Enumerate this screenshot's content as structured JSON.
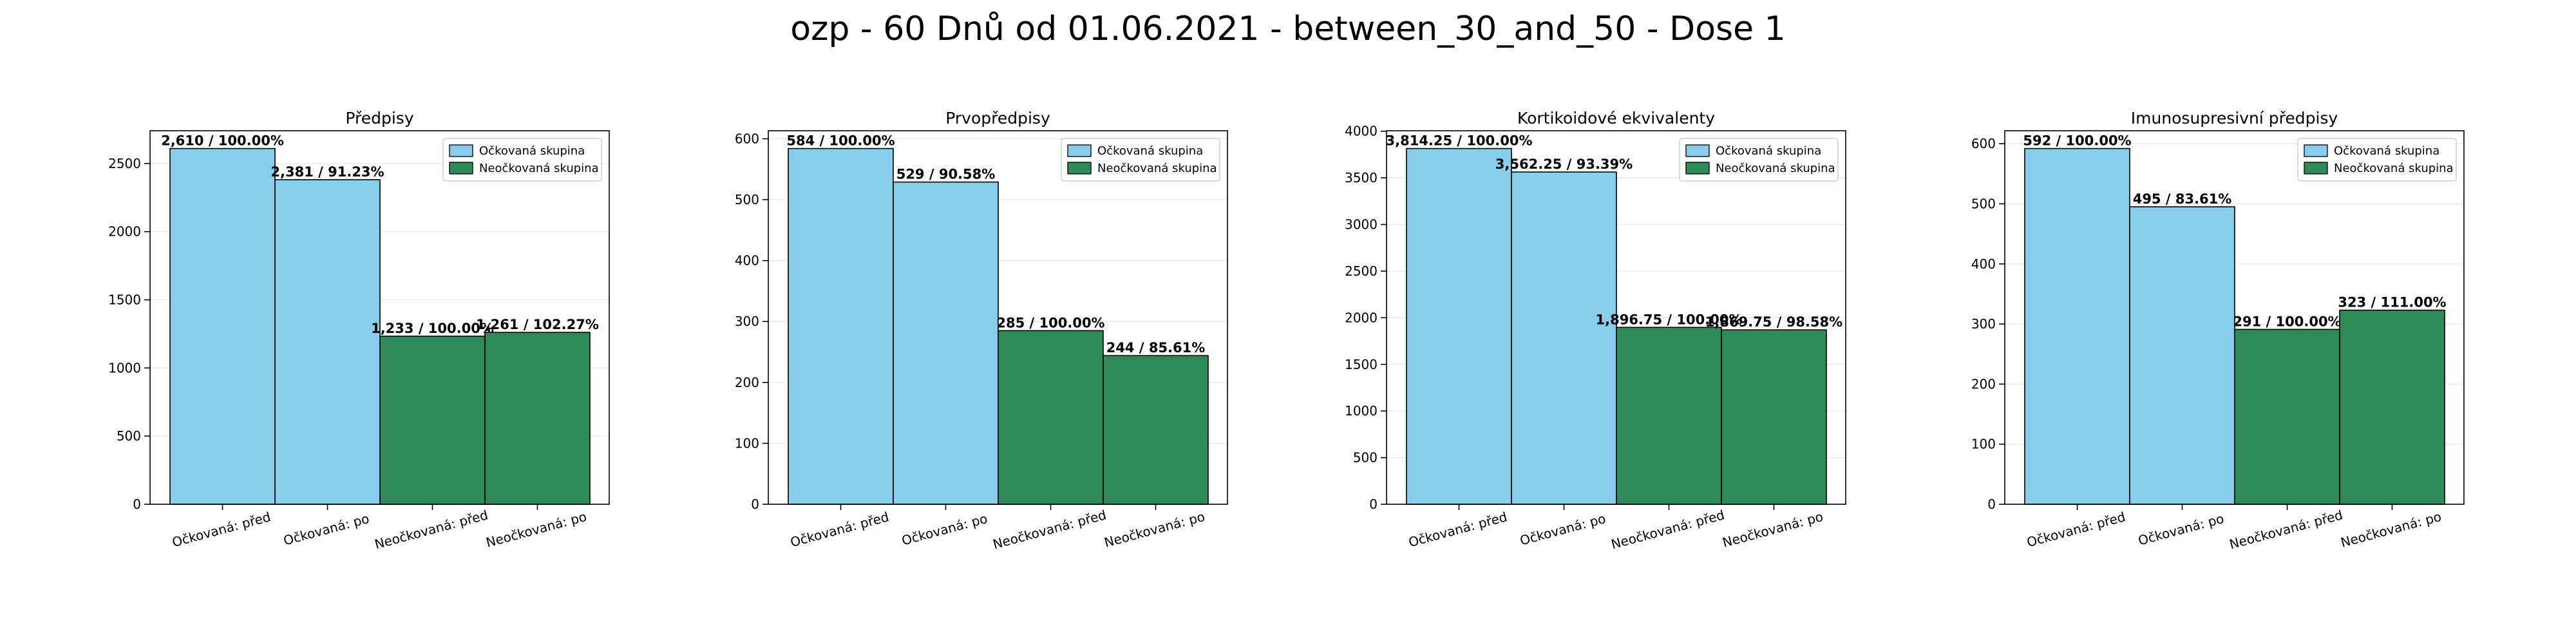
{
  "figure": {
    "title": "ozp - 60 Dnů od 01.06.2021 - between_30_and_50 - Dose 1"
  },
  "colors": {
    "vaccinated": "#87ceeb",
    "unvaccinated": "#2e8b57",
    "edge": "#000000",
    "grid": "#e6e6e6"
  },
  "chart_data": [
    {
      "type": "bar",
      "title": "Předpisy",
      "categories": [
        "Očkovaná: před",
        "Očkovaná: po",
        "Neočkovaná: před",
        "Neočkovaná: po"
      ],
      "series": [
        {
          "name": "Očkovaná skupina",
          "values": [
            2610,
            2381,
            null,
            null
          ]
        },
        {
          "name": "Neočkovaná skupina",
          "values": [
            null,
            null,
            1233,
            1261
          ]
        }
      ],
      "data_labels": [
        "2,610 / 100.00%",
        "2,381 / 91.23%",
        "1,233 / 100.00%",
        "1,261 / 102.27%"
      ],
      "ylim": [
        0,
        2740.5
      ],
      "yticks": [
        0,
        500,
        1000,
        1500,
        2000,
        2500
      ],
      "grid": true,
      "legend": "top-right"
    },
    {
      "type": "bar",
      "title": "Prvopředpisy",
      "categories": [
        "Očkovaná: před",
        "Očkovaná: po",
        "Neočkovaná: před",
        "Neočkovaná: po"
      ],
      "series": [
        {
          "name": "Očkovaná skupina",
          "values": [
            584,
            529,
            null,
            null
          ]
        },
        {
          "name": "Neočkovaná skupina",
          "values": [
            null,
            null,
            285,
            244
          ]
        }
      ],
      "data_labels": [
        "584 / 100.00%",
        "529 / 90.58%",
        "285 / 100.00%",
        "244 / 85.61%"
      ],
      "ylim": [
        0,
        613.2
      ],
      "yticks": [
        0,
        100,
        200,
        300,
        400,
        500,
        600
      ],
      "grid": true,
      "legend": "top-right"
    },
    {
      "type": "bar",
      "title": "Kortikoidové ekvivalenty",
      "categories": [
        "Očkovaná: před",
        "Očkovaná: po",
        "Neočkovaná: před",
        "Neočkovaná: po"
      ],
      "series": [
        {
          "name": "Očkovaná skupina",
          "values": [
            3814.25,
            3562.25,
            null,
            null
          ]
        },
        {
          "name": "Neočkovaná skupina",
          "values": [
            null,
            null,
            1896.75,
            1869.75
          ]
        }
      ],
      "data_labels": [
        "3,814.25 / 100.00%",
        "3,562.25 / 93.39%",
        "1,896.75 / 100.00%",
        "1,869.75 / 98.58%"
      ],
      "ylim": [
        0,
        4004.96
      ],
      "yticks": [
        0,
        500,
        1000,
        1500,
        2000,
        2500,
        3000,
        3500,
        4000
      ],
      "grid": true,
      "legend": "top-right"
    },
    {
      "type": "bar",
      "title": "Imunosupresivní předpisy",
      "categories": [
        "Očkovaná: před",
        "Očkovaná: po",
        "Neočkovaná: před",
        "Neočkovaná: po"
      ],
      "series": [
        {
          "name": "Očkovaná skupina",
          "values": [
            592,
            495,
            null,
            null
          ]
        },
        {
          "name": "Neočkovaná skupina",
          "values": [
            null,
            null,
            291,
            323
          ]
        }
      ],
      "data_labels": [
        "592 / 100.00%",
        "495 / 83.61%",
        "291 / 100.00%",
        "323 / 111.00%"
      ],
      "ylim": [
        0,
        621.6
      ],
      "yticks": [
        0,
        100,
        200,
        300,
        400,
        500,
        600
      ],
      "grid": true,
      "legend": "top-right"
    }
  ]
}
